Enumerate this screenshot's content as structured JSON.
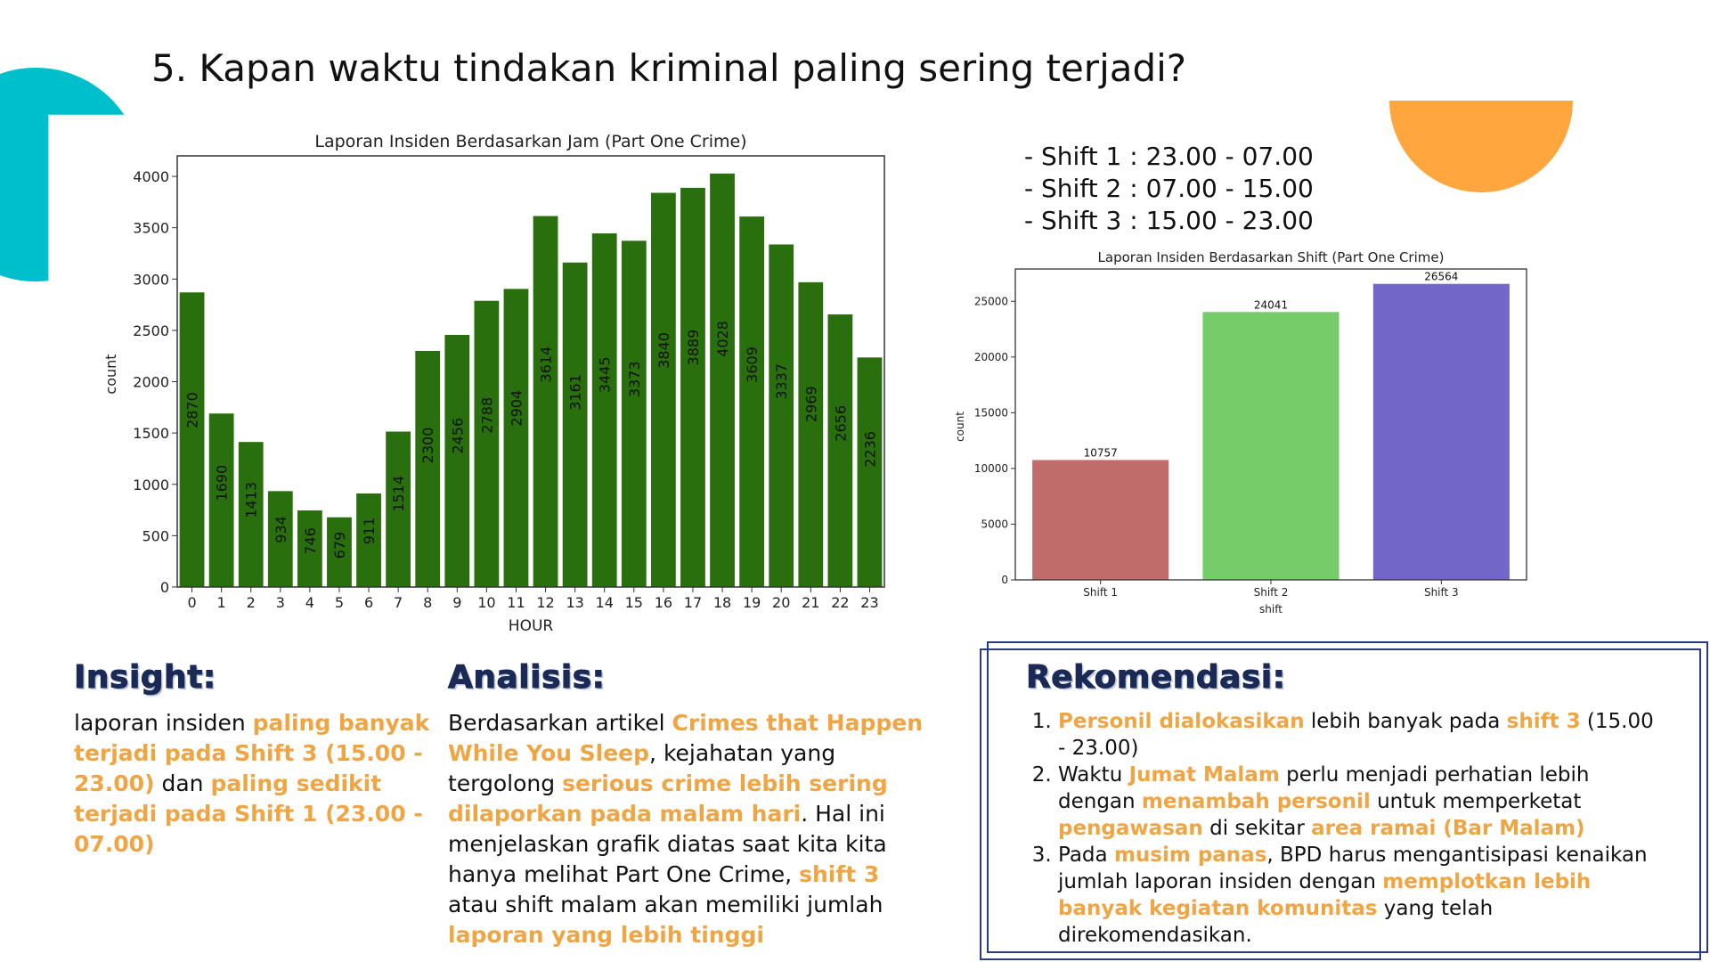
{
  "title": "5. Kapan waktu tindakan kriminal paling sering terjadi?",
  "colors": {
    "teal": "#00bfcc",
    "orange": "#ffa63f",
    "highlight": "#f0a545",
    "heading": "#1b2a55",
    "frame": "#2b3c7e"
  },
  "chart_data": [
    {
      "type": "bar",
      "title": "Laporan Insiden Berdasarkan Jam (Part One Crime)",
      "xlabel": "HOUR",
      "ylabel": "count",
      "categories": [
        "0",
        "1",
        "2",
        "3",
        "4",
        "5",
        "6",
        "7",
        "8",
        "9",
        "10",
        "11",
        "12",
        "13",
        "14",
        "15",
        "16",
        "17",
        "18",
        "19",
        "20",
        "21",
        "22",
        "23"
      ],
      "values": [
        2870,
        1690,
        1413,
        934,
        746,
        679,
        911,
        1514,
        2300,
        2456,
        2788,
        2904,
        3614,
        3161,
        3445,
        3373,
        3840,
        3889,
        4028,
        3609,
        3337,
        2969,
        2656,
        2236
      ],
      "ylim": [
        0,
        4200
      ],
      "yticks": [
        0,
        500,
        1000,
        1500,
        2000,
        2500,
        3000,
        3500,
        4000
      ],
      "bar_color": "#2a6f0d",
      "data_labels": "vertical, inside bars",
      "grid": false
    },
    {
      "type": "bar",
      "title": "Laporan Insiden Berdasarkan Shift (Part One Crime)",
      "xlabel": "shift",
      "ylabel": "count",
      "categories": [
        "Shift 1",
        "Shift 2",
        "Shift 3"
      ],
      "values": [
        10757,
        24041,
        26564
      ],
      "ylim": [
        0,
        27900
      ],
      "yticks": [
        0,
        5000,
        10000,
        15000,
        20000,
        25000
      ],
      "bar_colors": [
        "#c06c6a",
        "#77cc6a",
        "#7266c8"
      ],
      "data_labels": "above bars",
      "grid": false
    }
  ],
  "shifts": [
    "- Shift 1 : 23.00 - 07.00",
    "- Shift 2 : 07.00 - 15.00",
    "- Shift 3 : 15.00 - 23.00"
  ],
  "insight": {
    "heading": "Insight:",
    "p1": "laporan insiden ",
    "h1": "paling banyak terjadi pada Shift 3 (15.00 - 23.00)",
    "p2": " dan ",
    "h2": "paling sedikit terjadi pada Shift 1 (23.00 - 07.00)"
  },
  "analisis": {
    "heading": "Analisis:",
    "p1": "Berdasarkan artikel ",
    "h1": "Crimes that Happen While You Sleep",
    "p2": ", kejahatan yang tergolong ",
    "h2": "serious crime lebih sering dilaporkan pada malam hari",
    "p3": ". Hal ini menjelaskan grafik diatas saat kita kita hanya melihat Part One Crime, ",
    "h3": "shift 3",
    "p4": " atau shift malam akan memiliki jumlah ",
    "h4": "laporan yang lebih tinggi"
  },
  "rekomendasi": {
    "heading": "Rekomendasi:",
    "item1": {
      "h1": "Personil dialokasikan",
      "t1": " lebih banyak pada ",
      "h2": "shift 3",
      "t2": " (15.00 - 23.00)"
    },
    "item2": {
      "t1": "Waktu ",
      "h1": "Jumat Malam",
      "t2": " perlu menjadi perhatian lebih dengan ",
      "h2": "menambah personil",
      "t3": " untuk memperketat ",
      "h3": "pengawasan",
      "t4": " di sekitar ",
      "h4": "area ramai (Bar Malam)"
    },
    "item3": {
      "t1": "Pada ",
      "h1": "musim panas",
      "t2": ", BPD harus mengantisipasi kenaikan jumlah laporan insiden dengan ",
      "h2": "memplotkan lebih banyak kegiatan komunitas",
      "t3": " yang telah direkomendasikan."
    }
  }
}
